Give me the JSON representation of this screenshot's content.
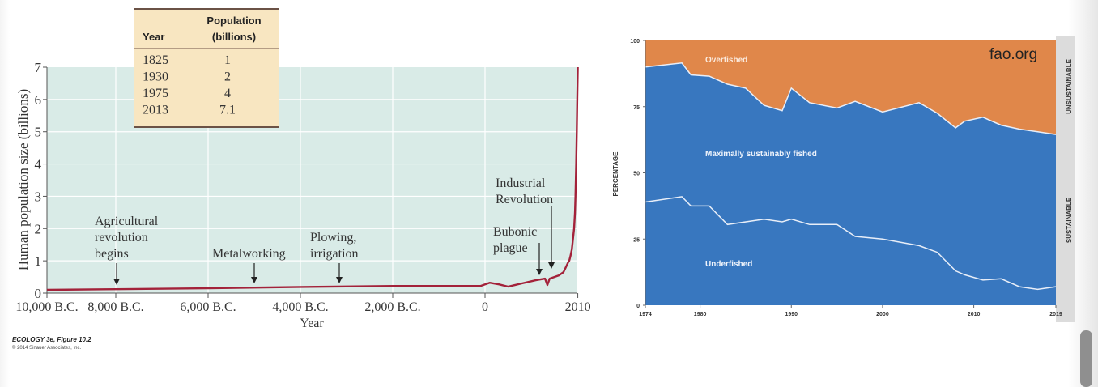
{
  "chart_data": [
    {
      "type": "line",
      "xlabel": "Year",
      "ylabel": "Human population size (billions)",
      "ylim": [
        0,
        7
      ],
      "yticks": [
        "0",
        "1",
        "2",
        "3",
        "4",
        "5",
        "6",
        "7"
      ],
      "xticks": [
        {
          "value": -10000,
          "label": "10,000 B.C."
        },
        {
          "value": -8000,
          "label": "8,000 B.C."
        },
        {
          "value": -6000,
          "label": "6,000 B.C."
        },
        {
          "value": -4000,
          "label": "4,000 B.C."
        },
        {
          "value": -2000,
          "label": "2,000 B.C."
        },
        {
          "value": 0,
          "label": "0"
        },
        {
          "value": 2010,
          "label": "2010"
        }
      ],
      "grid": true,
      "background_color": "#d9ebe7",
      "line_color": "#a3223a",
      "series": [
        {
          "x": [
            -10000,
            -8000,
            -6000,
            -4000,
            -2000,
            -100,
            100,
            300,
            500,
            800,
            1100,
            1300,
            1350,
            1400,
            1500,
            1600,
            1700,
            1750,
            1800,
            1825,
            1850,
            1880,
            1900,
            1930,
            1950,
            1960,
            1975,
            1987,
            1999,
            2010
          ],
          "y": [
            0.1,
            0.12,
            0.15,
            0.19,
            0.22,
            0.22,
            0.32,
            0.27,
            0.2,
            0.3,
            0.4,
            0.45,
            0.25,
            0.45,
            0.5,
            0.55,
            0.65,
            0.8,
            0.95,
            1,
            1.15,
            1.35,
            1.6,
            2,
            2.5,
            3,
            4,
            5,
            6,
            7
          ]
        }
      ],
      "annotations": [
        {
          "lines": [
            "Agricultural",
            "revolution",
            "begins"
          ],
          "x": -8000
        },
        {
          "lines": [
            "Metalworking"
          ],
          "x": -5000
        },
        {
          "lines": [
            "Plowing,",
            "irrigation"
          ],
          "x": -3000
        },
        {
          "lines": [
            "Bubonic",
            "plague"
          ],
          "x": 1175
        },
        {
          "lines": [
            "Industrial",
            "Revolution"
          ],
          "x": 1450
        }
      ],
      "table": {
        "headers": [
          [
            "",
            "Population"
          ],
          [
            "Year",
            "(billions)"
          ]
        ],
        "rows": [
          [
            "1825",
            "1"
          ],
          [
            "1930",
            "2"
          ],
          [
            "1975",
            "4"
          ],
          [
            "2013",
            "7.1"
          ]
        ],
        "background_color": "#f8e6c1"
      },
      "caption": "ECOLOGY 3e, Figure 10.2",
      "copyright": "© 2014 Sinauer Associates, Inc."
    },
    {
      "type": "area",
      "ylabel": "PERCENTAGE",
      "ylim": [
        0,
        100
      ],
      "xlim": [
        1974,
        2019
      ],
      "yticks": [
        "0",
        "25",
        "50",
        "75",
        "100"
      ],
      "xticks": [
        "1974",
        "1980",
        "1990",
        "2000",
        "2010",
        "2019"
      ],
      "watermark": "fao.org",
      "side_labels": [
        "UNSUSTAINABLE",
        "SUSTAINABLE"
      ],
      "colors": {
        "overfished": "#e0874a",
        "sustainable": "#3877bf",
        "boundary": "#e8eef8",
        "side_band": "#dcdcdc"
      },
      "series": [
        {
          "name": "Overfished",
          "note": "top band, above sustainable boundary"
        },
        {
          "name": "Maximally sustainably fished",
          "x": [
            1974,
            1978,
            1979,
            1981,
            1983,
            1985,
            1987,
            1989,
            1990,
            1992,
            1995,
            1997,
            2000,
            2004,
            2006,
            2008,
            2009,
            2011,
            2013,
            2015,
            2017,
            2019
          ],
          "y": [
            90,
            91.5,
            87,
            86.5,
            83.5,
            82,
            75.5,
            73.5,
            82,
            76.5,
            74.5,
            77,
            73,
            76.5,
            72.5,
            67,
            69.5,
            71,
            68,
            66.5,
            65.5,
            64.5
          ]
        },
        {
          "name": "Underfished",
          "x": [
            1974,
            1978,
            1979,
            1981,
            1983,
            1987,
            1989,
            1990,
            1992,
            1995,
            1997,
            2000,
            2004,
            2006,
            2008,
            2009,
            2011,
            2013,
            2015,
            2017,
            2019
          ],
          "y": [
            39,
            41,
            37.5,
            37.5,
            30.5,
            32.5,
            31.5,
            32.5,
            30.5,
            30.5,
            26,
            25,
            22.5,
            20,
            13,
            11.5,
            9.5,
            10,
            7,
            6,
            7
          ]
        }
      ]
    }
  ]
}
